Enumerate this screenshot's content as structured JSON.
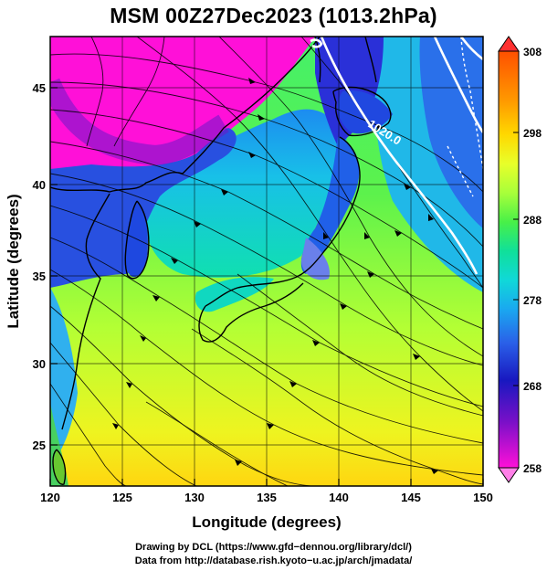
{
  "title": "MSM 00Z27Dec2023 (1013.2hPa)",
  "xlabel": "Longitude (degrees)",
  "ylabel": "Latitude  (degrees)",
  "xticks": [
    "120",
    "125",
    "130",
    "135",
    "140",
    "145",
    "150"
  ],
  "yticks": [
    "25",
    "30",
    "35",
    "40",
    "45"
  ],
  "colorbar": {
    "ticks": [
      "308",
      "298",
      "288",
      "278",
      "268",
      "258"
    ],
    "colors": [
      "#ff5000",
      "#ff9a00",
      "#ffd800",
      "#e8ff2a",
      "#a8ff3a",
      "#48f048",
      "#10e09a",
      "#10d8d8",
      "#1aa8f0",
      "#2a60e8",
      "#1818c0",
      "#7a10c8",
      "#ff10d8"
    ]
  },
  "contour_label": "1020.0",
  "credits": {
    "line1": "Drawing by DCL (https://www.gfd−dennou.org/library/dcl/)",
    "line2": "Data from http://database.rish.kyoto−u.ac.jp/arch/jmadata/"
  },
  "chart_data": {
    "type": "heatmap",
    "title": "MSM 00Z27Dec2023 (1013.2hPa)",
    "xlabel": "Longitude (degrees)",
    "ylabel": "Latitude  (degrees)",
    "xlim": [
      120,
      150
    ],
    "ylim": [
      22.4,
      47.6
    ],
    "colorbar_range": [
      258,
      308
    ],
    "grid": true
  }
}
